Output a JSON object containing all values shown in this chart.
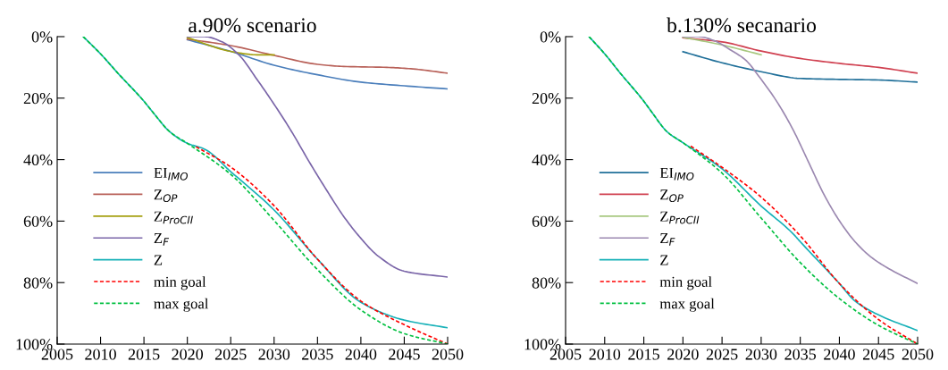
{
  "chart_data": [
    {
      "type": "line",
      "title": "a.90% scenario",
      "xlim": [
        2005,
        2050
      ],
      "xticks": [
        2005,
        2010,
        2015,
        2020,
        2025,
        2030,
        2035,
        2040,
        2045,
        2050
      ],
      "ylim": [
        100,
        0
      ],
      "yticks": [
        {
          "value": 0,
          "label": "0%"
        },
        {
          "value": 20,
          "label": "20%"
        },
        {
          "value": 40,
          "label": "40%"
        },
        {
          "value": 60,
          "label": "60%"
        },
        {
          "value": 80,
          "label": "80%"
        },
        {
          "value": 100,
          "label": "100%"
        }
      ],
      "grid": false,
      "legend": "left",
      "series": [
        {
          "name": "EI$_{IMO}$",
          "color": "#4a7ebb",
          "line_style": "solid",
          "x": [
            2020,
            2025,
            2030,
            2035,
            2040,
            2045,
            2050
          ],
          "values": [
            1,
            4.8,
            9.3,
            12.4,
            14.8,
            16,
            17
          ]
        },
        {
          "name": "Z$_{OP}$",
          "color": "#b86058",
          "line_style": "solid",
          "x": [
            2020,
            2025,
            2030,
            2035,
            2038,
            2043,
            2046,
            2050
          ],
          "values": [
            0.8,
            2.9,
            6.1,
            9,
            9.7,
            10,
            10.5,
            11.9
          ]
        },
        {
          "name": "Z$_{ProCII}$",
          "color": "#a5a010",
          "line_style": "solid",
          "x": [
            2020,
            2025,
            2028,
            2030
          ],
          "values": [
            0.3,
            4.8,
            5.9,
            5.9
          ]
        },
        {
          "name": "Z$_{F}$",
          "color": "#7a65a8",
          "line_style": "solid",
          "x": [
            2020,
            2022,
            2024,
            2026,
            2028,
            2030,
            2032,
            2034,
            2036,
            2038,
            2040,
            2042,
            2045,
            2050
          ],
          "values": [
            0,
            0,
            1.7,
            6.1,
            13.8,
            22,
            30.8,
            40.5,
            49.7,
            58.4,
            65.6,
            71.4,
            76.3,
            78.2
          ]
        },
        {
          "name": "Z",
          "color": "#17b1b8",
          "line_style": "solid",
          "x": [
            2008,
            2010,
            2012,
            2015,
            2016,
            2018,
            2020,
            2022,
            2025,
            2030,
            2035,
            2040,
            2045,
            2050
          ],
          "values": [
            0,
            5.6,
            11.9,
            21,
            24.5,
            31,
            34.7,
            36.6,
            43.9,
            56.4,
            72.4,
            86.4,
            92.2,
            94.7
          ]
        },
        {
          "name": "min goal",
          "color": "#ff0000",
          "line_style": "dashed",
          "x": [
            2021,
            2025,
            2030,
            2035,
            2040,
            2045,
            2050
          ],
          "values": [
            35.8,
            42.4,
            55,
            72.4,
            86,
            93.7,
            100
          ]
        },
        {
          "name": "max goal",
          "color": "#00c040",
          "line_style": "dashed",
          "x": [
            2008,
            2010,
            2012,
            2015,
            2016,
            2018,
            2020,
            2025,
            2030,
            2035,
            2040,
            2045,
            2050
          ],
          "values": [
            0,
            5.6,
            11.9,
            21,
            24.5,
            31,
            34.7,
            44.8,
            59.8,
            75.8,
            88.9,
            96.6,
            100
          ]
        }
      ]
    },
    {
      "type": "line",
      "title": "b.130% secanario",
      "xlim": [
        2005,
        2050
      ],
      "xticks": [
        2005,
        2010,
        2015,
        2020,
        2025,
        2030,
        2035,
        2040,
        2045,
        2050
      ],
      "ylim": [
        100,
        0
      ],
      "yticks": [
        {
          "value": 0,
          "label": "0%"
        },
        {
          "value": 20,
          "label": "20%"
        },
        {
          "value": 40,
          "label": "40%"
        },
        {
          "value": 60,
          "label": "60%"
        },
        {
          "value": 80,
          "label": "80%"
        },
        {
          "value": 100,
          "label": "100%"
        }
      ],
      "grid": false,
      "legend": "left",
      "series": [
        {
          "name": "EI$_{IMO}$",
          "color": "#1f6f99",
          "line_style": "solid",
          "x": [
            2020,
            2025,
            2030,
            2035,
            2040,
            2045,
            2050
          ],
          "values": [
            4.9,
            8.5,
            11.4,
            13.6,
            13.9,
            14.1,
            14.8
          ]
        },
        {
          "name": "Z$_{OP}$",
          "color": "#d04050",
          "line_style": "solid",
          "x": [
            2020,
            2025,
            2030,
            2035,
            2040,
            2045,
            2050
          ],
          "values": [
            0.4,
            1.7,
            4.7,
            7.1,
            8.7,
            10,
            11.9
          ]
        },
        {
          "name": "Z$_{ProCII}$",
          "color": "#a8c880",
          "line_style": "solid",
          "x": [
            2020,
            2025,
            2030
          ],
          "values": [
            0.2,
            2.7,
            5.9
          ]
        },
        {
          "name": "Z$_{F}$",
          "color": "#9b88b0",
          "line_style": "solid",
          "x": [
            2020,
            2022,
            2024,
            2026,
            2028,
            2030,
            2032,
            2034,
            2036,
            2038,
            2040,
            2042,
            2044,
            2046,
            2050
          ],
          "values": [
            0,
            0,
            1.3,
            4.2,
            7.6,
            13.9,
            21.1,
            29.9,
            40.5,
            51.2,
            59.9,
            66.7,
            71.6,
            75,
            80.3
          ]
        },
        {
          "name": "Z",
          "color": "#17b1b8",
          "line_style": "solid",
          "x": [
            2008,
            2010,
            2012,
            2015,
            2016,
            2018,
            2020,
            2025,
            2030,
            2034,
            2035,
            2040,
            2042,
            2045,
            2050
          ],
          "values": [
            0,
            5.6,
            11.9,
            21,
            24.5,
            31,
            34.5,
            43,
            55.1,
            63.9,
            66.7,
            80.3,
            86,
            90.5,
            95.6
          ]
        },
        {
          "name": "min goal",
          "color": "#ff0000",
          "line_style": "dashed",
          "x": [
            2021,
            2025,
            2030,
            2035,
            2040,
            2045,
            2050
          ],
          "values": [
            35.6,
            42.5,
            52.2,
            64.8,
            80.3,
            92,
            100
          ]
        },
        {
          "name": "max goal",
          "color": "#00c040",
          "line_style": "dashed",
          "x": [
            2008,
            2010,
            2012,
            2015,
            2016,
            2018,
            2020,
            2025,
            2030,
            2035,
            2040,
            2045,
            2050
          ],
          "values": [
            0,
            5.6,
            11.9,
            21,
            24.5,
            31,
            34.5,
            44.4,
            59,
            73.5,
            85.2,
            93.9,
            100
          ]
        }
      ]
    }
  ]
}
